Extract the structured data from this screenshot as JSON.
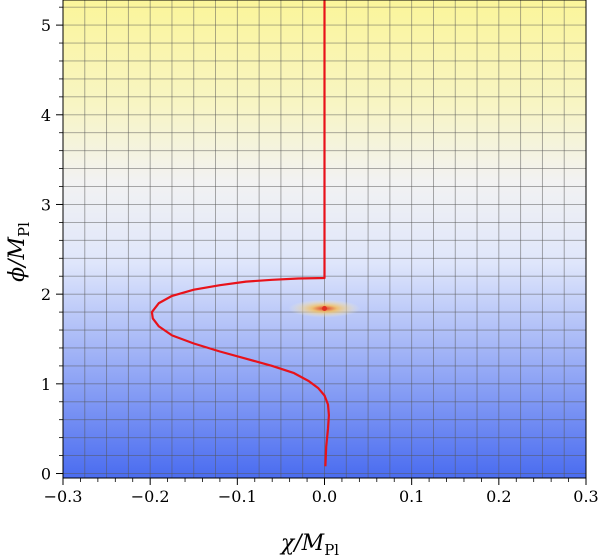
{
  "chart_data": {
    "type": "line",
    "xlabel": {
      "main": "χ/M",
      "sub": "Pl"
    },
    "ylabel": {
      "main": "ϕ/M",
      "sub": "Pl"
    },
    "xlim": [
      -0.3,
      0.3
    ],
    "ylim": [
      -0.05,
      5.28
    ],
    "x_ticks": [
      -0.3,
      -0.2,
      -0.1,
      0.0,
      0.1,
      0.2,
      0.3
    ],
    "x_tick_labels": [
      "−0.3",
      "−0.2",
      "−0.1",
      "0.0",
      "0.1",
      "0.2",
      "0.3"
    ],
    "y_ticks": [
      0,
      1,
      2,
      3,
      4,
      5
    ],
    "y_tick_labels": [
      "0",
      "1",
      "2",
      "3",
      "4",
      "5"
    ],
    "grid": true,
    "background": {
      "type": "density",
      "colors": {
        "low": "#4a6cf0",
        "mid": "#f2f2f2",
        "high": "#fbf59a"
      },
      "hotspot": {
        "x": 0.0,
        "y": 1.84,
        "color": "#e03020"
      }
    },
    "series": [
      {
        "color": "#e8121a",
        "x": [
          0.001,
          0.002,
          0.004,
          0.005,
          0.004,
          0.0,
          -0.007,
          -0.018,
          -0.035,
          -0.06,
          -0.09,
          -0.12,
          -0.15,
          -0.175,
          -0.19,
          -0.197,
          -0.198,
          -0.19,
          -0.175,
          -0.15,
          -0.12,
          -0.09,
          -0.06,
          -0.03,
          0.0,
          0.0,
          0.0,
          0.0
        ],
        "y": [
          0.08,
          0.3,
          0.5,
          0.65,
          0.77,
          0.87,
          0.95,
          1.03,
          1.12,
          1.2,
          1.28,
          1.36,
          1.45,
          1.54,
          1.64,
          1.73,
          1.8,
          1.9,
          1.98,
          2.05,
          2.1,
          2.14,
          2.16,
          2.175,
          2.18,
          3.0,
          4.5,
          5.28
        ]
      }
    ]
  }
}
